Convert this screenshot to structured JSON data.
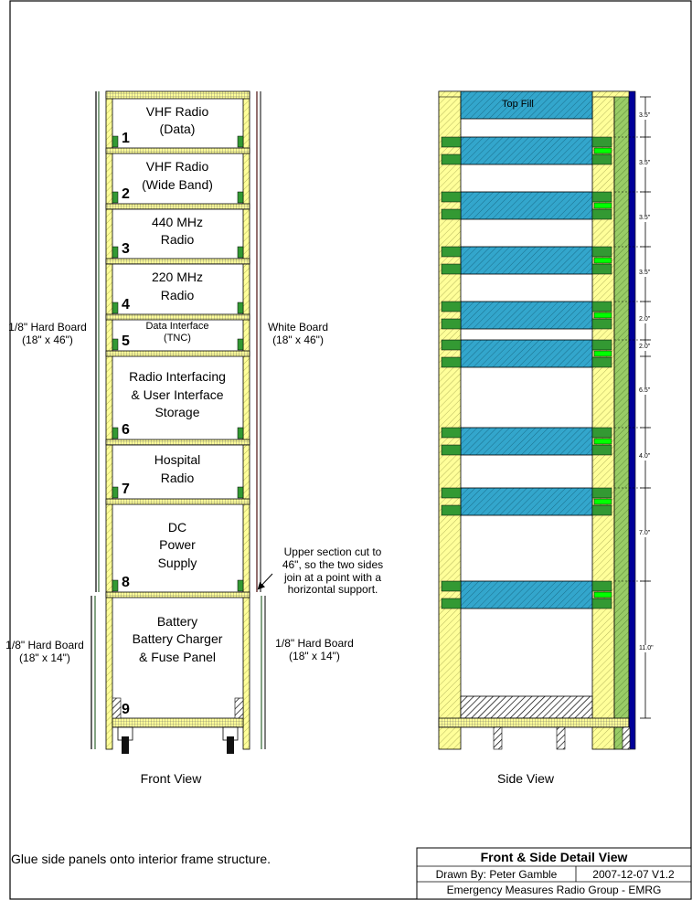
{
  "bays": [
    {
      "number": "1",
      "title": "VHF Radio\n(Data)"
    },
    {
      "number": "2",
      "title": "VHF Radio\n(Wide Band)"
    },
    {
      "number": "3",
      "title": "440 MHz\nRadio"
    },
    {
      "number": "4",
      "title": "220 MHz\nRadio"
    },
    {
      "number": "5",
      "title": "Data Interface\n(TNC)"
    },
    {
      "number": "6",
      "title": "Radio Interfacing\n& User Interface\nStorage"
    },
    {
      "number": "7",
      "title": "Hospital\nRadio"
    },
    {
      "number": "8",
      "title": "DC\nPower\nSupply"
    },
    {
      "number": "9",
      "title": "Battery\nBattery Charger\n& Fuse Panel"
    }
  ],
  "panels": {
    "left_upper": "1/8\" Hard Board\n(18\" x 46\")",
    "right_upper": "White Board\n(18\" x 46\")",
    "left_lower": "1/8\" Hard Board\n(18\" x 14\")",
    "right_lower": "1/8\" Hard Board\n(18\" x 14\")"
  },
  "cut_note": "Upper section cut to\n46\", so the two sides\njoin at a point with a\nhorizontal support.",
  "top_fill_label": "Top Fill",
  "dimensions": [
    "3.5\"",
    "3.5\"",
    "3.5\"",
    "3.5\"",
    "2.0\"",
    "2.0\"",
    "6.5\"",
    "4.0\"",
    "7.0\"",
    "11.0\""
  ],
  "views": {
    "front": "Front View",
    "side": "Side View"
  },
  "footnote": "Glue side panels onto interior frame structure.",
  "title_block": {
    "title": "Front & Side Detail View",
    "drawn_by": "Drawn By: Peter Gamble",
    "version": "2007-12-07 V1.2",
    "organization": "Emergency Measures Radio Group - EMRG"
  },
  "colors": {
    "frame_yellow": "#ffff99",
    "slot_green": "#339933",
    "bright_green": "#00ff00",
    "shelf_blue": "#33a6cc",
    "side_green": "#99cc66",
    "edge_blue": "#000099",
    "dark_panel": "#663333"
  }
}
